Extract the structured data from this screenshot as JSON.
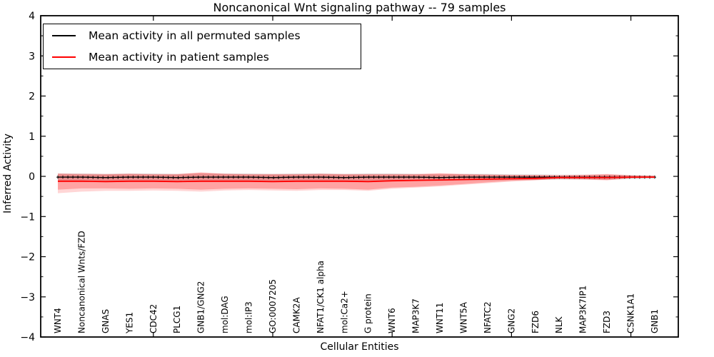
{
  "figure": {
    "title": "Noncanonical Wnt signaling pathway -- 79 samples",
    "xlabel": "Cellular Entities",
    "ylabel": "Inferred Activity"
  },
  "legend": {
    "items": [
      {
        "label": "Mean activity in all permuted samples",
        "color": "#000000"
      },
      {
        "label": "Mean activity in patient samples",
        "color": "#ff0000"
      }
    ]
  },
  "chart_data": {
    "type": "line",
    "title": "Noncanonical Wnt signaling pathway -- 79 samples",
    "xlabel": "Cellular Entities",
    "ylabel": "Inferred Activity",
    "ylim": [
      -4,
      4
    ],
    "yticks": [
      4,
      3,
      2,
      1,
      0,
      -1,
      -2,
      -3,
      -4
    ],
    "ytick_minor_step": 0.5,
    "xticks_major_at_category_index": [
      4,
      9,
      14,
      19,
      24
    ],
    "legend_position": "upper left",
    "grid": false,
    "categories": [
      "WNT4",
      "Noncanonical Wnts/FZD",
      "GNAS",
      "YES1",
      "CDC42",
      "PLCG1",
      "GNB1/GNG2",
      "mol:DAG",
      "mol:IP3",
      "GO:0007205",
      "CAMK2A",
      "NFAT1/CK1 alpha",
      "mol:Ca2+",
      "G protein",
      "WNT6",
      "MAP3K7",
      "WNT11",
      "WNT5A",
      "NFATC2",
      "GNG2",
      "FZD6",
      "NLK",
      "MAP3K7IP1",
      "FZD3",
      "CSNK1A1",
      "GNB1"
    ],
    "series": [
      {
        "name": "Mean activity in all permuted samples",
        "color": "#000000",
        "marker": "+",
        "values": [
          -0.02,
          -0.02,
          -0.03,
          -0.02,
          -0.02,
          -0.03,
          -0.02,
          -0.02,
          -0.02,
          -0.03,
          -0.02,
          -0.02,
          -0.03,
          -0.02,
          -0.02,
          -0.02,
          -0.03,
          -0.02,
          -0.02,
          -0.02,
          -0.02,
          -0.02,
          -0.02,
          -0.02,
          -0.02,
          -0.02
        ]
      },
      {
        "name": "Mean activity in patient samples",
        "color": "#ff0000",
        "marker": "none",
        "values": [
          -0.12,
          -0.12,
          -0.13,
          -0.12,
          -0.12,
          -0.13,
          -0.12,
          -0.12,
          -0.12,
          -0.13,
          -0.12,
          -0.12,
          -0.12,
          -0.13,
          -0.11,
          -0.1,
          -0.09,
          -0.08,
          -0.07,
          -0.06,
          -0.05,
          -0.03,
          -0.03,
          -0.03,
          -0.02,
          -0.02
        ]
      }
    ],
    "bands": [
      {
        "name": "permuted-samples-band",
        "color": "#999999",
        "opacity": 0.32,
        "upper": [
          0.07,
          0.07,
          0.06,
          0.07,
          0.07,
          0.06,
          0.07,
          0.07,
          0.07,
          0.06,
          0.07,
          0.07,
          0.06,
          0.07,
          0.07,
          0.06,
          0.05,
          0.06,
          0.06,
          0.05,
          0.05,
          0.04,
          0.04,
          0.04,
          0.03,
          0.02
        ],
        "lower": [
          -0.11,
          -0.11,
          -0.12,
          -0.11,
          -0.11,
          -0.12,
          -0.11,
          -0.11,
          -0.11,
          -0.12,
          -0.11,
          -0.11,
          -0.12,
          -0.11,
          -0.11,
          -0.1,
          -0.11,
          -0.1,
          -0.1,
          -0.09,
          -0.09,
          -0.08,
          -0.08,
          -0.08,
          -0.07,
          -0.06
        ]
      },
      {
        "name": "patient-samples-band-outer",
        "color": "#ff0000",
        "opacity": 0.16,
        "upper": [
          0.08,
          0.07,
          0.06,
          0.07,
          0.06,
          0.06,
          0.1,
          0.07,
          0.06,
          0.06,
          0.06,
          0.07,
          0.06,
          0.06,
          0.06,
          0.06,
          0.08,
          0.06,
          0.05,
          0.04,
          0.03,
          0.03,
          0.04,
          0.06,
          0.03,
          0.02
        ],
        "lower": [
          -0.42,
          -0.38,
          -0.36,
          -0.36,
          -0.35,
          -0.36,
          -0.38,
          -0.35,
          -0.34,
          -0.35,
          -0.36,
          -0.34,
          -0.34,
          -0.36,
          -0.31,
          -0.28,
          -0.25,
          -0.21,
          -0.17,
          -0.13,
          -0.1,
          -0.07,
          -0.08,
          -0.1,
          -0.05,
          -0.03
        ]
      },
      {
        "name": "patient-samples-band-inner",
        "color": "#ff0000",
        "opacity": 0.24,
        "upper": [
          0.06,
          0.05,
          0.05,
          0.06,
          0.05,
          0.05,
          0.09,
          0.06,
          0.05,
          0.05,
          0.05,
          0.06,
          0.05,
          0.05,
          0.05,
          0.05,
          0.07,
          0.05,
          0.04,
          0.03,
          0.03,
          0.02,
          0.03,
          0.05,
          0.02,
          0.01
        ],
        "lower": [
          -0.33,
          -0.3,
          -0.3,
          -0.31,
          -0.3,
          -0.31,
          -0.33,
          -0.31,
          -0.3,
          -0.31,
          -0.32,
          -0.3,
          -0.31,
          -0.33,
          -0.28,
          -0.26,
          -0.23,
          -0.19,
          -0.15,
          -0.11,
          -0.09,
          -0.06,
          -0.07,
          -0.09,
          -0.04,
          -0.03
        ]
      }
    ]
  }
}
